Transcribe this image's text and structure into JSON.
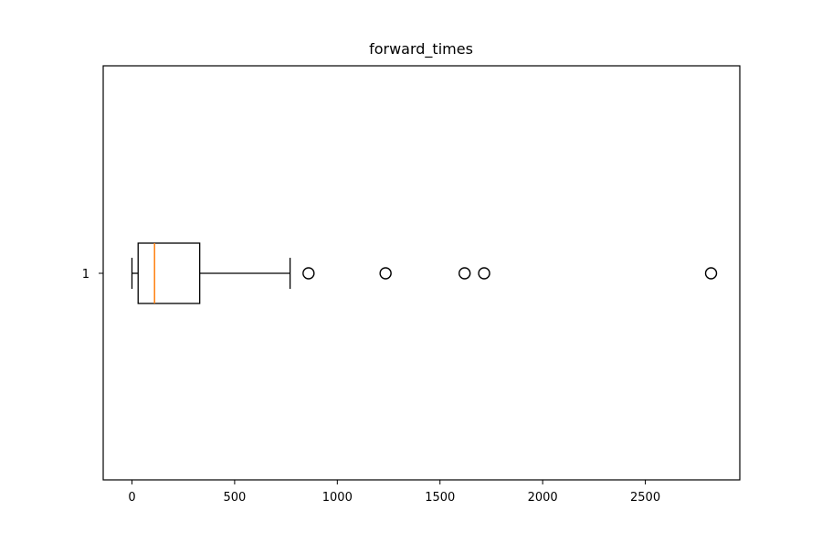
{
  "chart_data": {
    "type": "box",
    "orientation": "horizontal",
    "title": "forward_times",
    "xlabel": "",
    "ylabel": "",
    "xlim": [
      -140,
      2960
    ],
    "xticks": [
      0,
      500,
      1000,
      1500,
      2000,
      2500
    ],
    "xtick_labels": [
      "0",
      "500",
      "1000",
      "1500",
      "2000",
      "2500"
    ],
    "yticks": [
      1
    ],
    "ytick_labels": [
      "1"
    ],
    "grid": false,
    "boxes": [
      {
        "position": 1,
        "whisker_low": 0,
        "q1": 30,
        "median": 110,
        "q3": 330,
        "whisker_high": 770,
        "outliers": [
          860,
          1235,
          1620,
          1715,
          2820
        ]
      }
    ],
    "colors": {
      "box": "#000000",
      "median": "#ff7f0e",
      "outlier_edge": "#000000"
    }
  }
}
